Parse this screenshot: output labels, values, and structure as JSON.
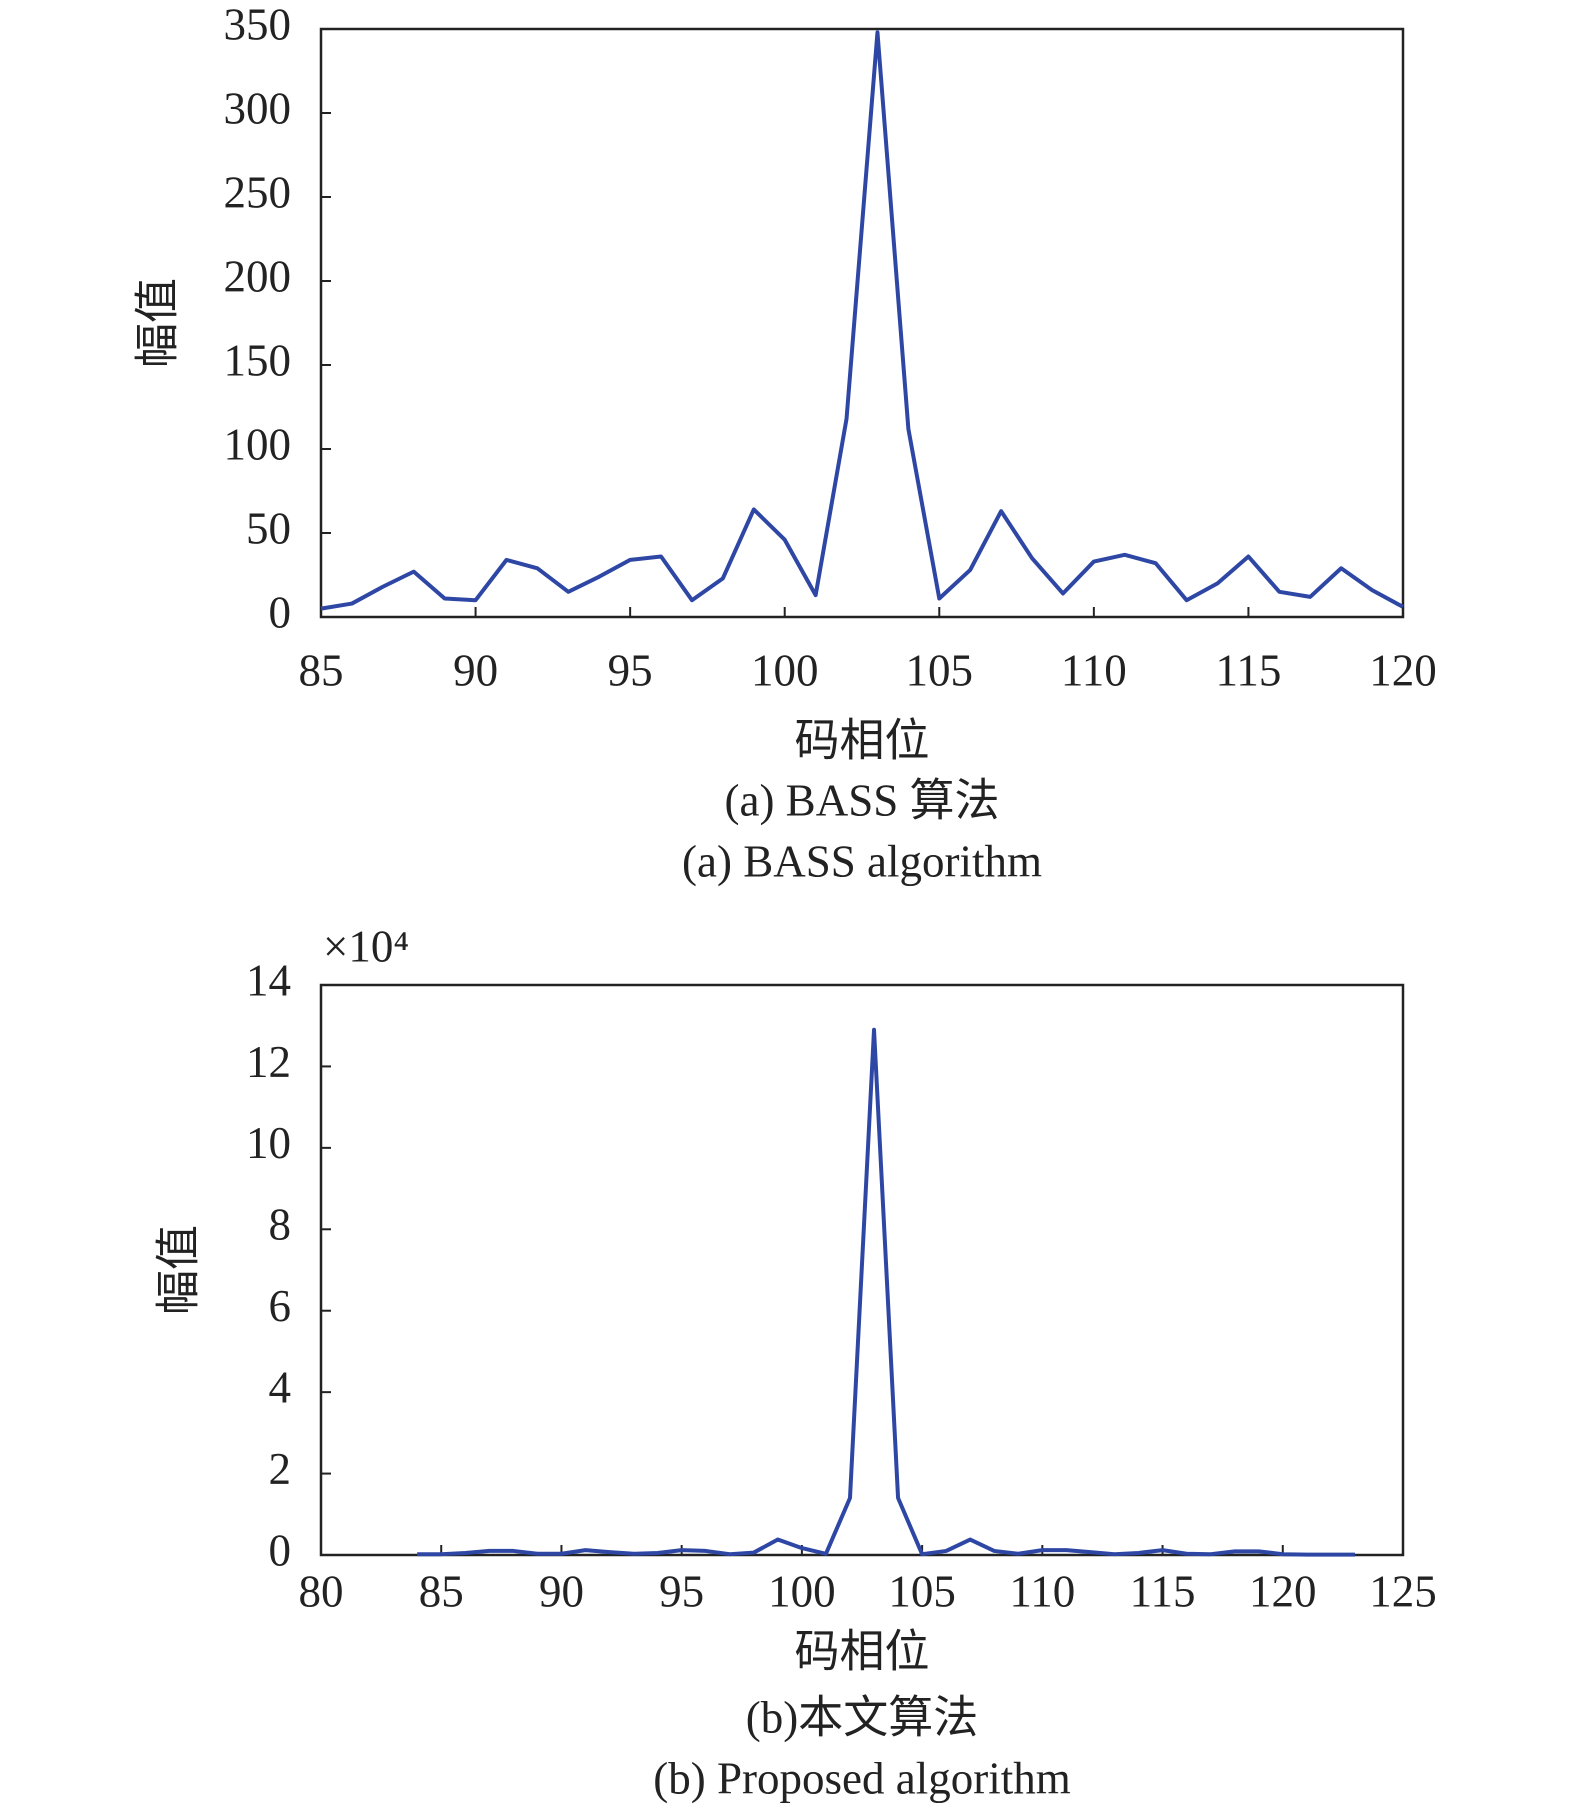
{
  "chart_data": [
    {
      "type": "line",
      "xlabel": "码相位",
      "ylabel": "幅值",
      "caption": "(a) BASS 算法",
      "caption_en": "(a) BASS algorithm",
      "x": [
        85,
        86,
        87,
        88,
        89,
        90,
        91,
        92,
        93,
        94,
        95,
        96,
        97,
        98,
        99,
        100,
        101,
        102,
        103,
        104,
        105,
        106,
        107,
        108,
        109,
        110,
        111,
        112,
        113,
        114,
        115,
        116,
        117,
        118,
        119,
        120
      ],
      "series": [
        {
          "color": "#2e47a5",
          "values": [
            5,
            8,
            18,
            27,
            11,
            10,
            34,
            29,
            15,
            24,
            34,
            36,
            10,
            23,
            64,
            46,
            13,
            118,
            348,
            112,
            11,
            28,
            63,
            35,
            14,
            33,
            37,
            32,
            10,
            20,
            36,
            15,
            12,
            29,
            16,
            6
          ]
        }
      ],
      "xlim": [
        85,
        120
      ],
      "xticks": [
        85,
        90,
        95,
        100,
        105,
        110,
        115,
        120
      ],
      "ylim": [
        0,
        350
      ],
      "yticks": [
        0,
        50,
        100,
        150,
        200,
        250,
        300,
        350
      ]
    },
    {
      "type": "line",
      "xlabel": "码相位",
      "ylabel": "幅值",
      "caption": "(b)本文算法",
      "caption_en": "(b) Proposed algorithm",
      "y_scale_label": "×10⁴",
      "x": [
        84,
        85,
        86,
        87,
        88,
        89,
        90,
        91,
        92,
        93,
        94,
        95,
        96,
        97,
        98,
        99,
        100,
        101,
        102,
        103,
        104,
        105,
        106,
        107,
        108,
        109,
        110,
        111,
        112,
        113,
        114,
        115,
        116,
        117,
        118,
        119,
        120,
        121,
        122,
        123
      ],
      "series": [
        {
          "color": "#2e47a5",
          "values": [
            0.02,
            0.02,
            0.05,
            0.1,
            0.1,
            0.03,
            0.03,
            0.12,
            0.07,
            0.03,
            0.05,
            0.12,
            0.1,
            0.02,
            0.06,
            0.38,
            0.17,
            0.03,
            1.4,
            12.9,
            1.4,
            0.02,
            0.1,
            0.38,
            0.1,
            0.03,
            0.12,
            0.12,
            0.07,
            0.02,
            0.05,
            0.12,
            0.03,
            0.02,
            0.09,
            0.09,
            0.02,
            0.01,
            0.01,
            0.01
          ]
        }
      ],
      "xlim": [
        80,
        125
      ],
      "xticks": [
        80,
        85,
        90,
        95,
        100,
        105,
        110,
        115,
        120,
        125
      ],
      "ylim": [
        0,
        14
      ],
      "yticks": [
        0,
        2,
        4,
        6,
        8,
        10,
        12,
        14
      ]
    }
  ]
}
